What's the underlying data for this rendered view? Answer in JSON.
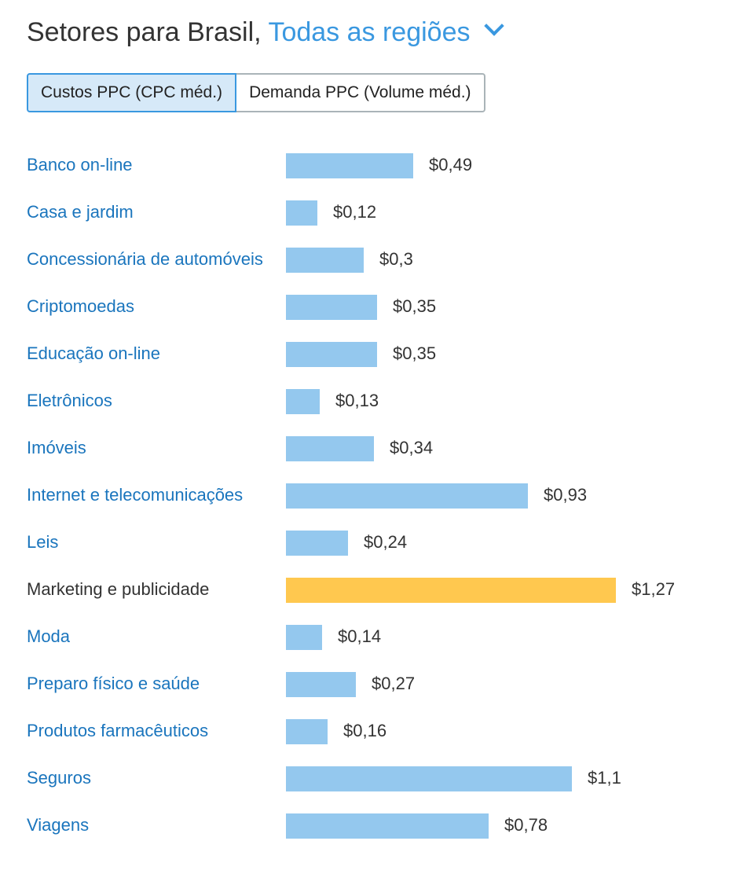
{
  "header": {
    "title": "Setores para Brasil,",
    "region": "Todas as regiões"
  },
  "toggle": {
    "active": "Custos PPC (CPC méd.)",
    "inactive": "Demanda PPC (Volume méd.)"
  },
  "colors": {
    "bar": "#94c8ee",
    "highlight": "#ffc84f",
    "link": "#1a75bd"
  },
  "chart_data": {
    "type": "bar",
    "orientation": "horizontal",
    "title": "Setores para Brasil, Todas as regiões",
    "categories": [
      "Banco on-line",
      "Casa e jardim",
      "Concessionária de automóveis",
      "Criptomoedas",
      "Educação on-line",
      "Eletrônicos",
      "Imóveis",
      "Internet e telecomunicações",
      "Leis",
      "Marketing e publicidade",
      "Moda",
      "Preparo físico e saúde",
      "Produtos farmacêuticos",
      "Seguros",
      "Viagens"
    ],
    "values": [
      0.49,
      0.12,
      0.3,
      0.35,
      0.35,
      0.13,
      0.34,
      0.93,
      0.24,
      1.27,
      0.14,
      0.27,
      0.16,
      1.1,
      0.78
    ],
    "labels": [
      "$0,49",
      "$0,12",
      "$0,3",
      "$0,35",
      "$0,35",
      "$0,13",
      "$0,34",
      "$0,93",
      "$0,24",
      "$1,27",
      "$0,14",
      "$0,27",
      "$0,16",
      "$1,1",
      "$0,78"
    ],
    "highlighted": "Marketing e publicidade",
    "xlim": [
      0,
      1.27
    ]
  }
}
